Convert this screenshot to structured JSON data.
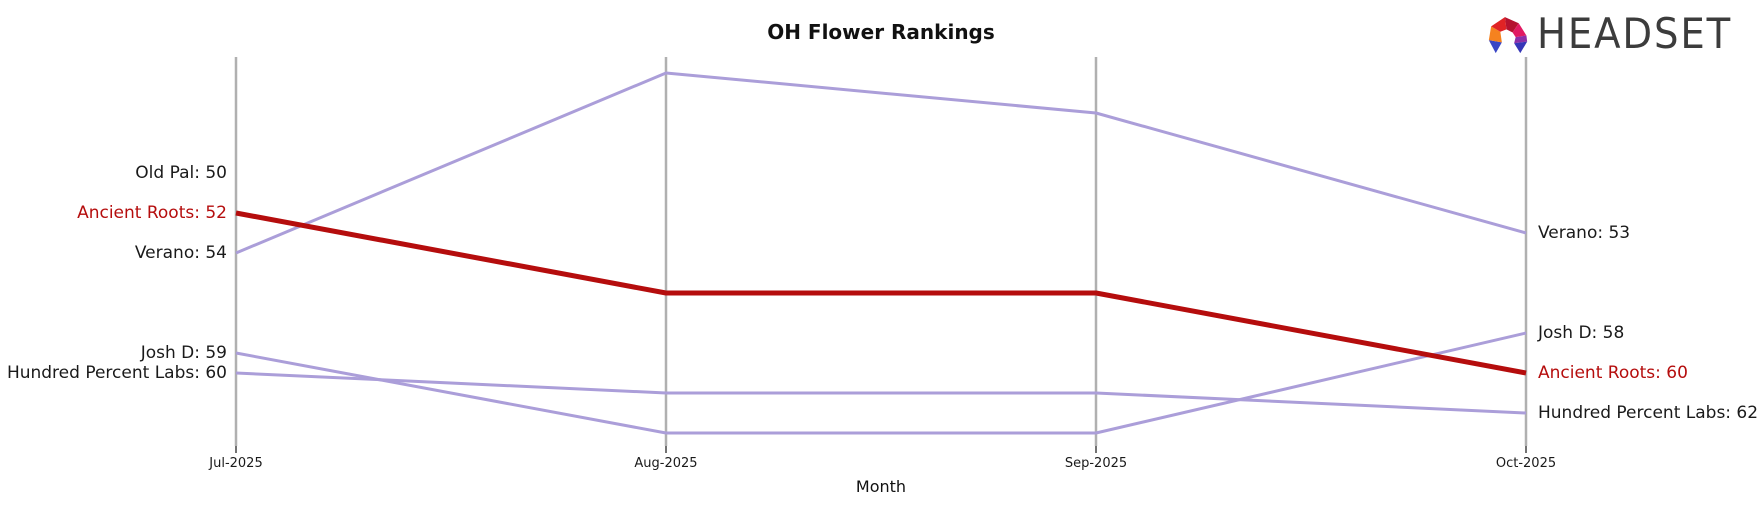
{
  "title": "OH Flower Rankings",
  "brand": {
    "name": "HEADSET"
  },
  "axis": {
    "xlabel": "Month",
    "categories": [
      "Jul-2025",
      "Aug-2025",
      "Sep-2025",
      "Oct-2025"
    ]
  },
  "colors": {
    "highlight": "#b50d0d",
    "series": "#ab9ed9",
    "grid": "#b0b0b0",
    "tick": "#444444",
    "text": "#1a1a1a"
  },
  "chart_data": {
    "type": "line",
    "subtype": "bump-ranking",
    "title": "OH Flower Rankings",
    "xlabel": "Month",
    "x": [
      "Jul-2025",
      "Aug-2025",
      "Sep-2025",
      "Oct-2025"
    ],
    "y_inverted": true,
    "ylim": [
      44,
      64
    ],
    "grid": "vertical-only",
    "series": [
      {
        "name": "Old Pal",
        "values": [
          50,
          null,
          null,
          null
        ],
        "highlight": false,
        "left_label": "Old Pal: 50",
        "right_label": null
      },
      {
        "name": "Ancient Roots",
        "values": [
          52,
          56,
          56,
          60
        ],
        "highlight": true,
        "left_label": "Ancient Roots: 52",
        "right_label": "Ancient Roots: 60"
      },
      {
        "name": "Verano",
        "values": [
          54,
          45,
          47,
          53
        ],
        "highlight": false,
        "left_label": "Verano: 54",
        "right_label": "Verano: 53"
      },
      {
        "name": "Josh D",
        "values": [
          59,
          63,
          63,
          58
        ],
        "highlight": false,
        "left_label": "Josh D: 59",
        "right_label": "Josh D: 58"
      },
      {
        "name": "Hundred Percent Labs",
        "values": [
          60,
          61,
          61,
          62
        ],
        "highlight": false,
        "left_label": "Hundred Percent Labs: 60",
        "right_label": "Hundred Percent Labs: 62"
      }
    ]
  }
}
